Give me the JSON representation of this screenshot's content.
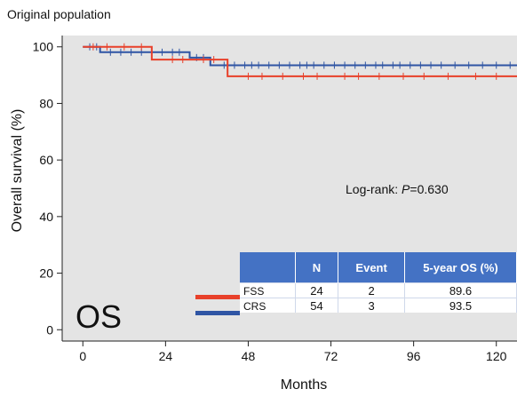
{
  "chart_data": {
    "type": "line",
    "subtitle": "Original population",
    "ylabel": "Overall survival (%)",
    "xlabel": "Months",
    "xlim": [
      -6,
      126
    ],
    "ylim": [
      -4,
      104
    ],
    "xticks": [
      "0",
      "24",
      "48",
      "72",
      "96",
      "120"
    ],
    "xtick_values": [
      0,
      24,
      48,
      72,
      96,
      120
    ],
    "yticks": [
      "0",
      "20",
      "40",
      "60",
      "80",
      "100"
    ],
    "ytick_values": [
      0,
      20,
      40,
      60,
      80,
      100
    ],
    "panel_label": "OS",
    "annotation_prefix": "Log-rank: ",
    "annotation_p": "P",
    "annotation_value": "=0.630",
    "series": [
      {
        "name": "FSS",
        "color": "#E8402A",
        "steps": [
          [
            0,
            100
          ],
          [
            20,
            100
          ],
          [
            20,
            95.5
          ],
          [
            42,
            95.5
          ],
          [
            42,
            89.6
          ],
          [
            126,
            89.6
          ]
        ],
        "censors": [
          [
            3,
            100
          ],
          [
            7,
            100
          ],
          [
            12,
            100
          ],
          [
            17,
            100
          ],
          [
            26,
            95.5
          ],
          [
            29,
            95.5
          ],
          [
            35,
            95.5
          ],
          [
            38,
            95.5
          ],
          [
            48,
            89.6
          ],
          [
            52,
            89.6
          ],
          [
            58,
            89.6
          ],
          [
            64,
            89.6
          ],
          [
            68,
            89.6
          ],
          [
            76,
            89.6
          ],
          [
            80,
            89.6
          ],
          [
            86,
            89.6
          ],
          [
            93,
            89.6
          ],
          [
            99,
            89.6
          ],
          [
            106,
            89.6
          ],
          [
            114,
            89.6
          ],
          [
            120,
            89.6
          ]
        ]
      },
      {
        "name": "CRS",
        "color": "#2F55A4",
        "steps": [
          [
            0,
            100
          ],
          [
            5,
            100
          ],
          [
            5,
            98.1
          ],
          [
            31,
            98.1
          ],
          [
            31,
            96.2
          ],
          [
            37,
            96.2
          ],
          [
            37,
            93.5
          ],
          [
            126,
            93.5
          ]
        ],
        "censors": [
          [
            2,
            100
          ],
          [
            4,
            100
          ],
          [
            8,
            98.1
          ],
          [
            11,
            98.1
          ],
          [
            14,
            98.1
          ],
          [
            17,
            98.1
          ],
          [
            20,
            98.1
          ],
          [
            23,
            98.1
          ],
          [
            26,
            98.1
          ],
          [
            28,
            98.1
          ],
          [
            33,
            96.2
          ],
          [
            35,
            96.2
          ],
          [
            41,
            93.5
          ],
          [
            44,
            93.5
          ],
          [
            47,
            93.5
          ],
          [
            49,
            93.5
          ],
          [
            51,
            93.5
          ],
          [
            54,
            93.5
          ],
          [
            57,
            93.5
          ],
          [
            60,
            93.5
          ],
          [
            63,
            93.5
          ],
          [
            65,
            93.5
          ],
          [
            67,
            93.5
          ],
          [
            70,
            93.5
          ],
          [
            73,
            93.5
          ],
          [
            76,
            93.5
          ],
          [
            79,
            93.5
          ],
          [
            82,
            93.5
          ],
          [
            85,
            93.5
          ],
          [
            87,
            93.5
          ],
          [
            90,
            93.5
          ],
          [
            92,
            93.5
          ],
          [
            95,
            93.5
          ],
          [
            98,
            93.5
          ],
          [
            101,
            93.5
          ],
          [
            104,
            93.5
          ],
          [
            108,
            93.5
          ],
          [
            112,
            93.5
          ],
          [
            116,
            93.5
          ],
          [
            120,
            93.5
          ],
          [
            124,
            93.5
          ]
        ]
      }
    ],
    "table": {
      "headers": [
        "",
        "N",
        "Event",
        "5-year OS (%)"
      ],
      "rows": [
        {
          "group": "FSS",
          "n": "24",
          "event": "2",
          "os5": "89.6",
          "color": "#E8402A"
        },
        {
          "group": "CRS",
          "n": "54",
          "event": "3",
          "os5": "93.5",
          "color": "#2F55A4"
        }
      ]
    },
    "plot_background": "#E4E4E4",
    "grid": false
  }
}
